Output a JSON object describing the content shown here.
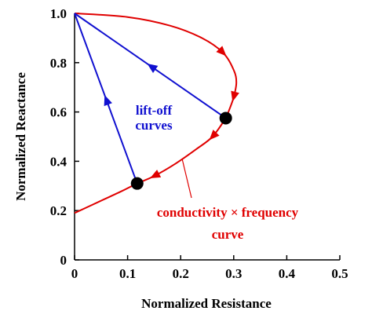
{
  "chart_data": {
    "type": "line",
    "title": "",
    "xlabel": "Normalized Resistance",
    "ylabel": "Normalized Reactance",
    "xlim": [
      0,
      0.5
    ],
    "ylim": [
      0,
      1.0
    ],
    "x_ticks": [
      0,
      0.1,
      0.2,
      0.3,
      0.4,
      0.5
    ],
    "y_ticks": [
      0,
      0.2,
      0.4,
      0.6,
      0.8,
      1.0
    ],
    "x_tick_labels": [
      "0",
      "0.1",
      "0.2",
      "0.3",
      "0.4",
      "0.5"
    ],
    "y_tick_labels": [
      "0",
      "0.2",
      "0.4",
      "0.6",
      "0.8",
      "1.0"
    ],
    "grid": false,
    "colors": {
      "conductivity_curve": "#e00000",
      "lift_off": "#1010d0",
      "points": "#000000"
    },
    "conductivity_curve": {
      "points": [
        [
          0.0,
          1.0
        ],
        [
          0.1,
          0.985
        ],
        [
          0.18,
          0.95
        ],
        [
          0.24,
          0.9
        ],
        [
          0.28,
          0.84
        ],
        [
          0.3,
          0.77
        ],
        [
          0.305,
          0.72
        ],
        [
          0.3,
          0.66
        ],
        [
          0.29,
          0.6
        ],
        [
          0.285,
          0.575
        ],
        [
          0.26,
          0.5
        ],
        [
          0.23,
          0.45
        ],
        [
          0.19,
          0.39
        ],
        [
          0.15,
          0.34
        ],
        [
          0.118,
          0.31
        ],
        [
          0.09,
          0.28
        ],
        [
          0.05,
          0.24
        ],
        [
          0.0,
          0.19
        ]
      ],
      "arrow_at": [
        4,
        7,
        10,
        13
      ]
    },
    "lift_off_curves": [
      {
        "start": [
          0.285,
          0.575
        ],
        "end": [
          0.0,
          1.0
        ]
      },
      {
        "start": [
          0.118,
          0.31
        ],
        "end": [
          0.0,
          1.0
        ]
      }
    ],
    "operating_points": [
      [
        0.285,
        0.575
      ],
      [
        0.118,
        0.31
      ]
    ],
    "annotations": {
      "lift_off": [
        "lift-off",
        "curves"
      ],
      "conductivity": [
        "conductivity × frequency",
        "curve"
      ]
    }
  }
}
